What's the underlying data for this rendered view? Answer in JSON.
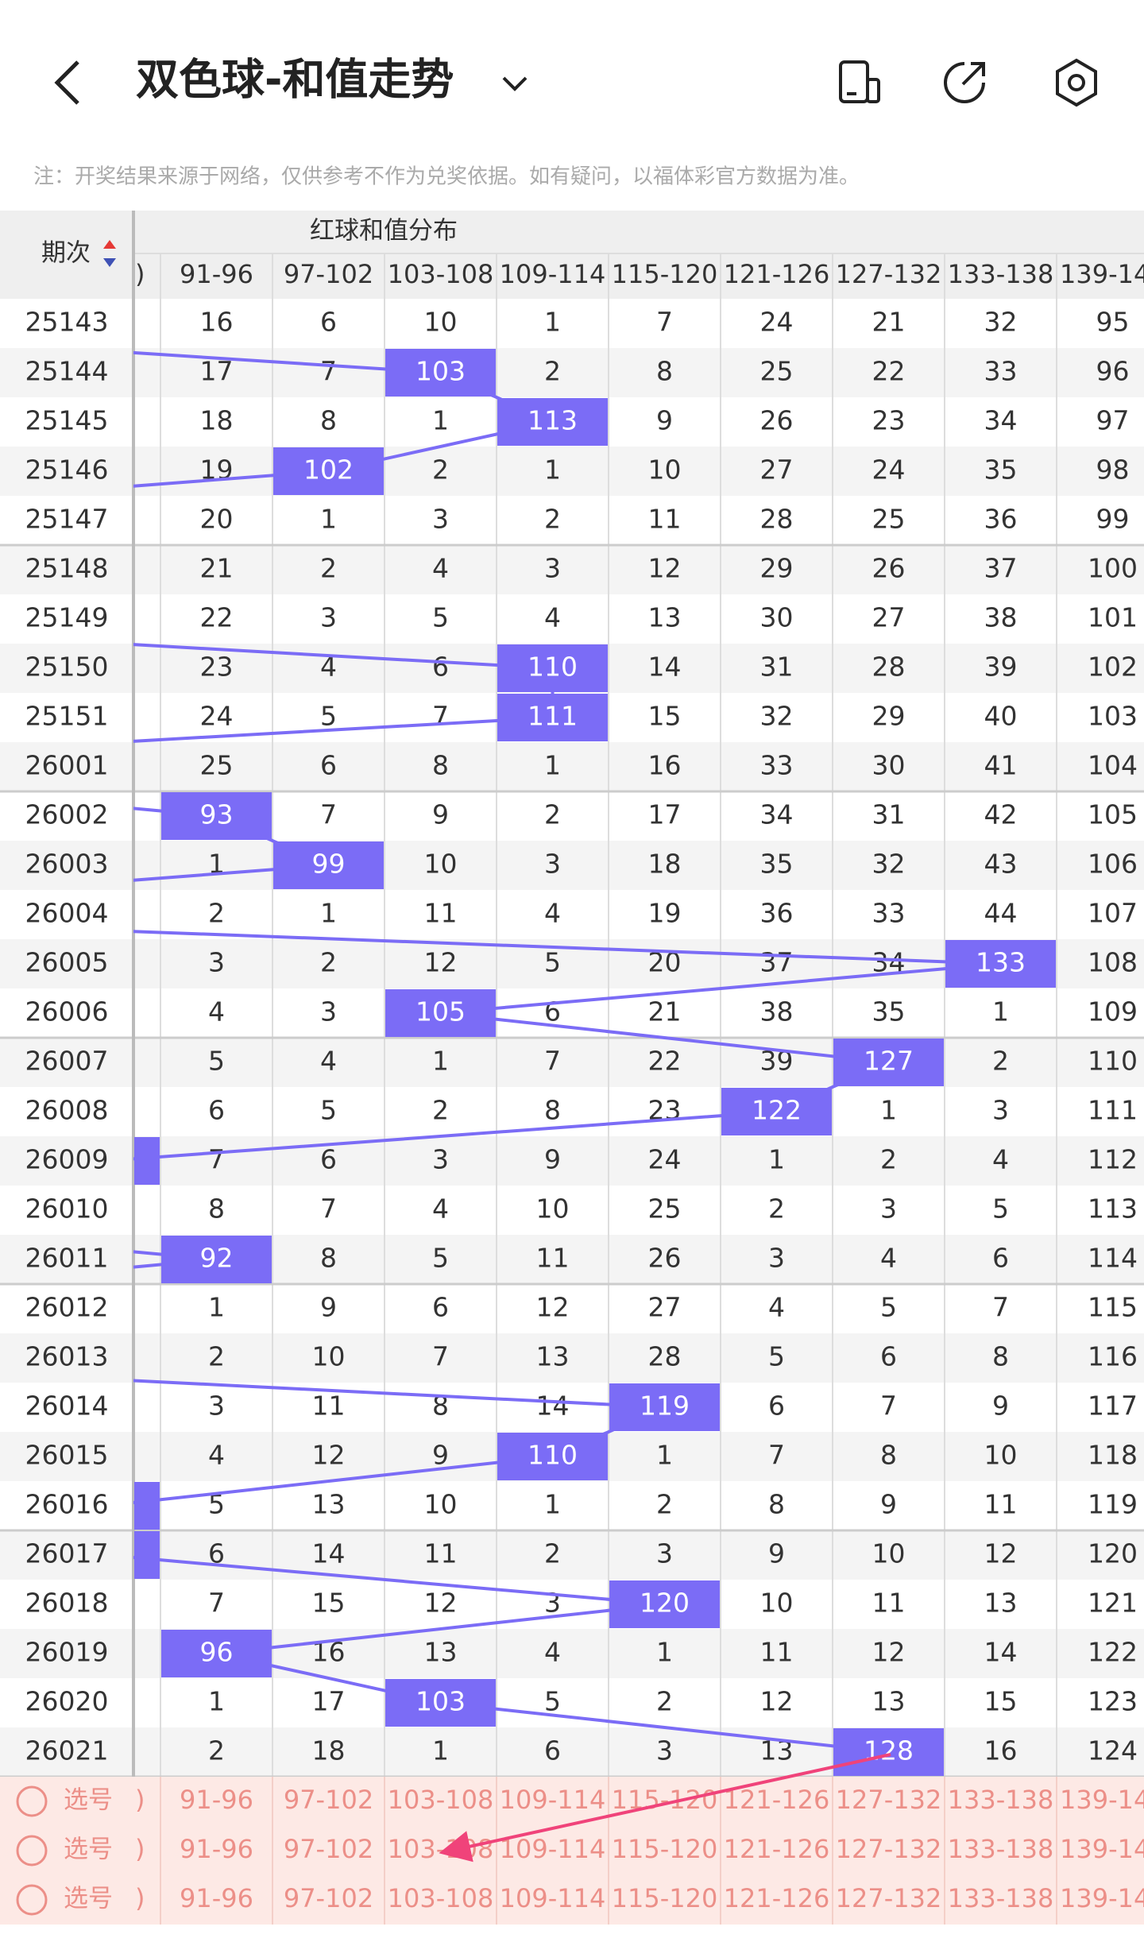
{
  "header": {
    "title": "双色球-和值走势"
  },
  "note": "注：开奖结果来源于网络，仅供参考不作为兑奖依据。如有疑问，以福体彩官方数据为准。",
  "table": {
    "period_header": "期次",
    "group_header": "红球和值分布",
    "columns": [
      ")",
      "91-96",
      "97-102",
      "103-108",
      "109-114",
      "115-120",
      "121-126",
      "127-132",
      "133-138",
      "139-14"
    ],
    "rows": [
      {
        "period": 25143,
        "cells": [
          null,
          16,
          6,
          10,
          1,
          7,
          24,
          21,
          32,
          95
        ]
      },
      {
        "period": 25144,
        "cells": [
          null,
          17,
          7,
          103,
          2,
          8,
          25,
          22,
          33,
          96
        ],
        "hit": 3
      },
      {
        "period": 25145,
        "cells": [
          null,
          18,
          8,
          1,
          113,
          9,
          26,
          23,
          34,
          97
        ],
        "hit": 4
      },
      {
        "period": 25146,
        "cells": [
          null,
          19,
          102,
          2,
          1,
          10,
          27,
          24,
          35,
          98
        ],
        "hit": 2
      },
      {
        "period": 25147,
        "cells": [
          null,
          20,
          1,
          3,
          2,
          11,
          28,
          25,
          36,
          99
        ]
      },
      {
        "period": 25148,
        "cells": [
          null,
          21,
          2,
          4,
          3,
          12,
          29,
          26,
          37,
          100
        ]
      },
      {
        "period": 25149,
        "cells": [
          null,
          22,
          3,
          5,
          4,
          13,
          30,
          27,
          38,
          101
        ]
      },
      {
        "period": 25150,
        "cells": [
          null,
          23,
          4,
          6,
          110,
          14,
          31,
          28,
          39,
          102
        ],
        "hit": 4
      },
      {
        "period": 25151,
        "cells": [
          null,
          24,
          5,
          7,
          111,
          15,
          32,
          29,
          40,
          103
        ],
        "hit": 4
      },
      {
        "period": 26001,
        "cells": [
          null,
          25,
          6,
          8,
          1,
          16,
          33,
          30,
          41,
          104
        ]
      },
      {
        "period": 26002,
        "cells": [
          null,
          93,
          7,
          9,
          2,
          17,
          34,
          31,
          42,
          105
        ],
        "hit": 1
      },
      {
        "period": 26003,
        "cells": [
          null,
          1,
          99,
          10,
          3,
          18,
          35,
          32,
          43,
          106
        ],
        "hit": 2
      },
      {
        "period": 26004,
        "cells": [
          null,
          2,
          1,
          11,
          4,
          19,
          36,
          33,
          44,
          107
        ]
      },
      {
        "period": 26005,
        "cells": [
          null,
          3,
          2,
          12,
          5,
          20,
          37,
          34,
          133,
          108
        ],
        "hit": 8
      },
      {
        "period": 26006,
        "cells": [
          null,
          4,
          3,
          105,
          6,
          21,
          38,
          35,
          1,
          109
        ],
        "hit": 3
      },
      {
        "period": 26007,
        "cells": [
          null,
          5,
          4,
          1,
          7,
          22,
          39,
          127,
          2,
          110
        ],
        "hit": 7
      },
      {
        "period": 26008,
        "cells": [
          null,
          6,
          5,
          2,
          8,
          23,
          122,
          1,
          3,
          111
        ],
        "hit": 6
      },
      {
        "period": 26009,
        "cells": [
          null,
          7,
          6,
          3,
          9,
          24,
          1,
          2,
          4,
          112
        ],
        "hit": 0
      },
      {
        "period": 26010,
        "cells": [
          null,
          8,
          7,
          4,
          10,
          25,
          2,
          3,
          5,
          113
        ]
      },
      {
        "period": 26011,
        "cells": [
          null,
          92,
          8,
          5,
          11,
          26,
          3,
          4,
          6,
          114
        ],
        "hit": 1
      },
      {
        "period": 26012,
        "cells": [
          null,
          1,
          9,
          6,
          12,
          27,
          4,
          5,
          7,
          115
        ]
      },
      {
        "period": 26013,
        "cells": [
          null,
          2,
          10,
          7,
          13,
          28,
          5,
          6,
          8,
          116
        ]
      },
      {
        "period": 26014,
        "cells": [
          null,
          3,
          11,
          8,
          14,
          119,
          6,
          7,
          9,
          117
        ],
        "hit": 5
      },
      {
        "period": 26015,
        "cells": [
          null,
          4,
          12,
          9,
          110,
          1,
          7,
          8,
          10,
          118
        ],
        "hit": 4
      },
      {
        "period": 26016,
        "cells": [
          null,
          5,
          13,
          10,
          1,
          2,
          8,
          9,
          11,
          119
        ],
        "hit": 0
      },
      {
        "period": 26017,
        "cells": [
          null,
          6,
          14,
          11,
          2,
          3,
          9,
          10,
          12,
          120
        ],
        "hit": 0
      },
      {
        "period": 26018,
        "cells": [
          null,
          7,
          15,
          12,
          3,
          120,
          10,
          11,
          13,
          121
        ],
        "hit": 5
      },
      {
        "period": 26019,
        "cells": [
          null,
          96,
          16,
          13,
          4,
          1,
          11,
          12,
          14,
          122
        ],
        "hit": 1
      },
      {
        "period": 26020,
        "cells": [
          null,
          1,
          17,
          103,
          5,
          2,
          12,
          13,
          15,
          123
        ],
        "hit": 3
      },
      {
        "period": 26021,
        "cells": [
          null,
          2,
          18,
          1,
          6,
          3,
          13,
          128,
          16,
          124
        ],
        "hit": 7
      }
    ]
  },
  "select_rows": [
    {
      "label": "选号"
    },
    {
      "label": "选号"
    },
    {
      "label": "选号"
    }
  ]
}
